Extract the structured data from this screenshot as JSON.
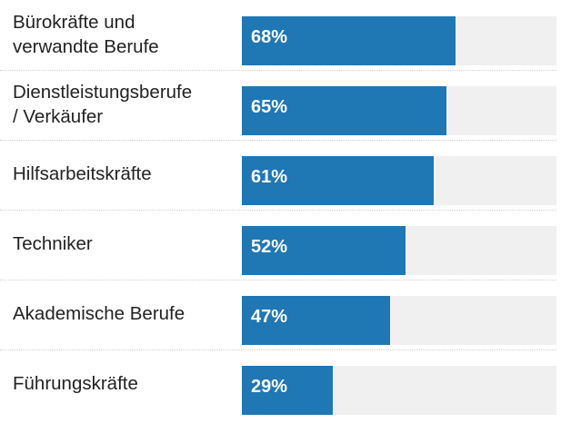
{
  "chart_data": {
    "type": "bar",
    "orientation": "horizontal",
    "categories": [
      "Bürokräfte und\nverwandte Berufe",
      "Dienstleistungsberufe\n/ Verkäufer",
      "Hilfsarbeitskräfte",
      "Techniker",
      "Akademische Berufe",
      "Führungskräfte"
    ],
    "values": [
      68,
      65,
      61,
      52,
      47,
      29
    ],
    "value_labels": [
      "68%",
      "65%",
      "61%",
      "52%",
      "47%",
      "29%"
    ],
    "xlim": [
      0,
      100
    ],
    "bar_color": "#1f77b4",
    "track_color": "#f0f0f0",
    "grid": false
  }
}
